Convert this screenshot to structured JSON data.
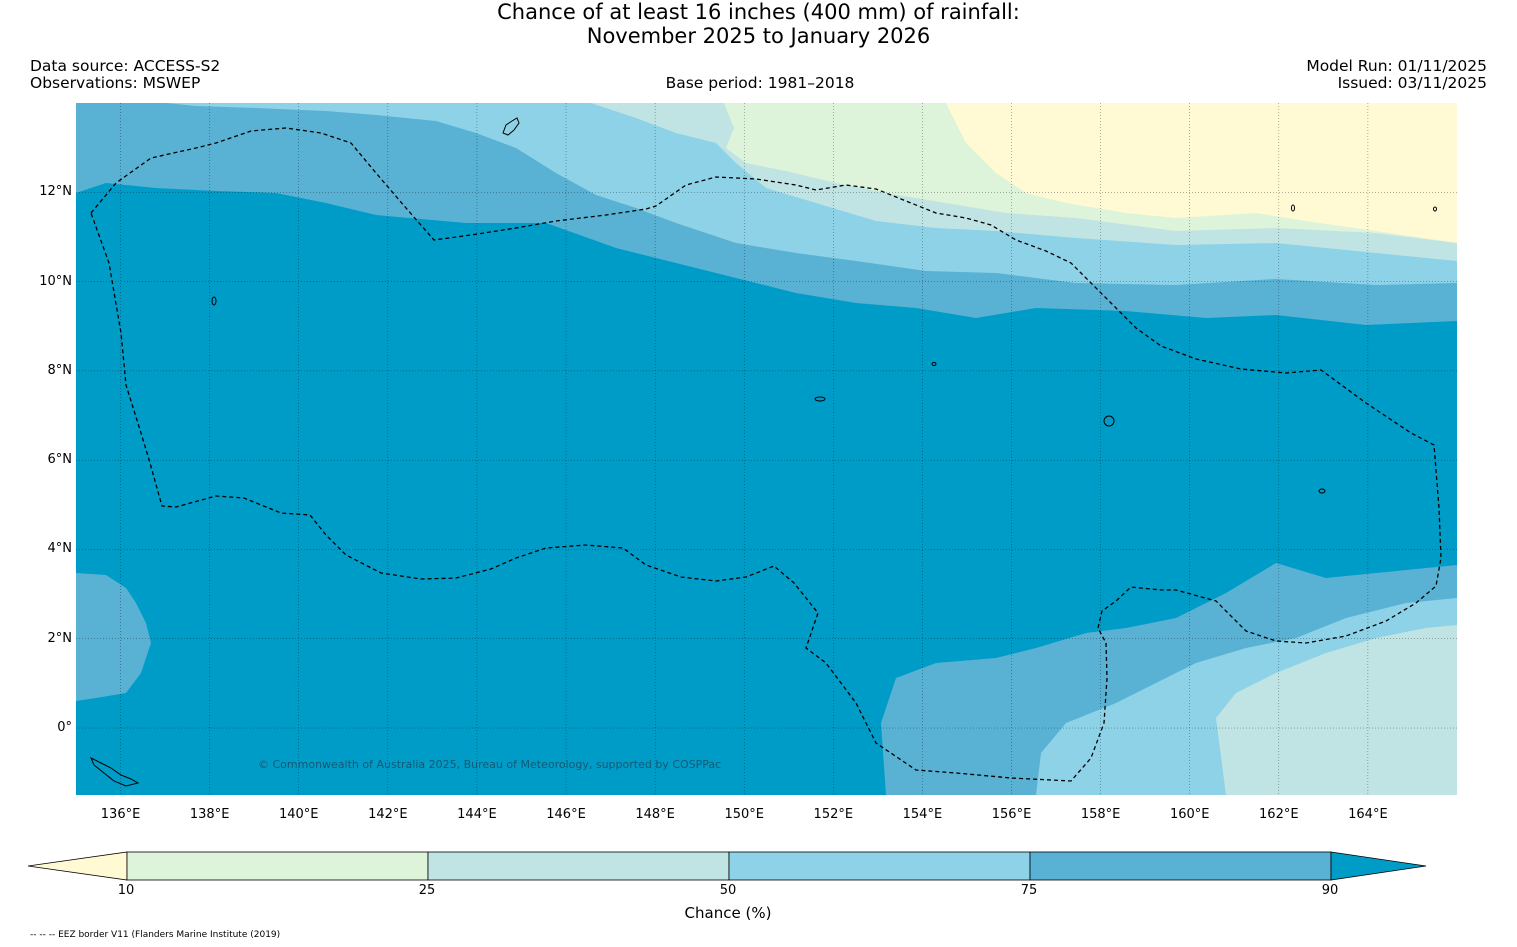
{
  "title": {
    "line1": "Chance of at least 16 inches (400  mm) of rainfall:",
    "line2": "November 2025 to January 2026"
  },
  "meta": {
    "data_source": "Data source: ACCESS-S2",
    "observations": "Observations: MSWEP",
    "base_period": "Base period: 1981–2018",
    "model_run": "Model Run: 01/11/2025",
    "issued": "Issued: 03/11/2025"
  },
  "map": {
    "extent": {
      "lon": [
        135,
        166
      ],
      "lat": [
        -1.5,
        14
      ]
    },
    "y_ticks": [
      {
        "lat": 12,
        "label": "12°N"
      },
      {
        "lat": 10,
        "label": "10°N"
      },
      {
        "lat": 8,
        "label": "8°N"
      },
      {
        "lat": 6,
        "label": "6°N"
      },
      {
        "lat": 4,
        "label": "4°N"
      },
      {
        "lat": 2,
        "label": "2°N"
      },
      {
        "lat": 0,
        "label": "0°"
      }
    ],
    "x_ticks": [
      {
        "lon": 136,
        "label": "136°E"
      },
      {
        "lon": 138,
        "label": "138°E"
      },
      {
        "lon": 140,
        "label": "140°E"
      },
      {
        "lon": 142,
        "label": "142°E"
      },
      {
        "lon": 144,
        "label": "144°E"
      },
      {
        "lon": 146,
        "label": "146°E"
      },
      {
        "lon": 148,
        "label": "148°E"
      },
      {
        "lon": 150,
        "label": "150°E"
      },
      {
        "lon": 152,
        "label": "152°E"
      },
      {
        "lon": 154,
        "label": "154°E"
      },
      {
        "lon": 156,
        "label": "156°E"
      },
      {
        "lon": 158,
        "label": "158°E"
      },
      {
        "lon": 160,
        "label": "160°E"
      },
      {
        "lon": 162,
        "label": "162°E"
      },
      {
        "lon": 164,
        "label": "164°E"
      }
    ],
    "copyright": "© Commonwealth of Australia 2025, Bureau of Meteorology, supported by COSPPac"
  },
  "colorbar": {
    "label": "Chance (%)",
    "ticks": [
      "10",
      "25",
      "50",
      "75",
      "90"
    ],
    "colors": {
      "below_10": "#fff9d4",
      "10_25": "#def4da",
      "25_50": "#c0e4e4",
      "50_75": "#8ed2e8",
      "75_90": "#59b1d4",
      "above_90": "#009cc8"
    }
  },
  "footnote": "-- -- -- EEZ border V11 (Flanders Marine Institute (2019)"
}
